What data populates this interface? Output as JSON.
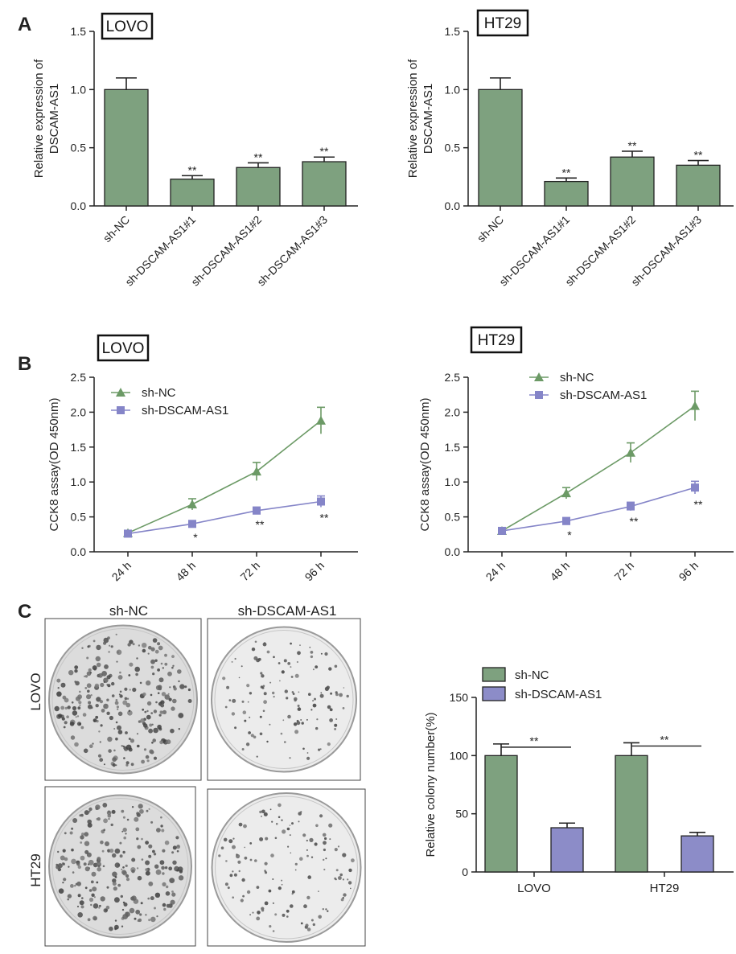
{
  "panels": {
    "A": "A",
    "B": "B",
    "C": "C"
  },
  "colors": {
    "green": "#7ea17f",
    "purple": "#8c8cc8",
    "green_line": "#6c9a66",
    "purple_line": "#8585c8",
    "axis": "#222222"
  },
  "chart_data": [
    {
      "id": "a_lovo",
      "type": "bar",
      "title": "LOVO",
      "ylabel_lines": [
        "Relative expression of",
        "DSCAM-AS1"
      ],
      "ylim": [
        0,
        1.5
      ],
      "yticks": [
        "0.0",
        "0.5",
        "1.0",
        "1.5"
      ],
      "ytick_values": [
        0,
        0.5,
        1.0,
        1.5
      ],
      "categories": [
        "sh-NC",
        "sh-DSCAM-AS1#1",
        "sh-DSCAM-AS1#2",
        "sh-DSCAM-AS1#3"
      ],
      "values": [
        1.0,
        0.23,
        0.33,
        0.38
      ],
      "errors": [
        0.1,
        0.03,
        0.04,
        0.04
      ],
      "sig": [
        "",
        "**",
        "**",
        "**"
      ]
    },
    {
      "id": "a_ht29",
      "type": "bar",
      "title": "HT29",
      "ylabel_lines": [
        "Relative expression of",
        "DSCAM-AS1"
      ],
      "ylim": [
        0,
        1.5
      ],
      "yticks": [
        "0.0",
        "0.5",
        "1.0",
        "1.5"
      ],
      "ytick_values": [
        0,
        0.5,
        1.0,
        1.5
      ],
      "categories": [
        "sh-NC",
        "sh-DSCAM-AS1#1",
        "sh-DSCAM-AS1#2",
        "sh-DSCAM-AS1#3"
      ],
      "values": [
        1.0,
        0.21,
        0.42,
        0.35
      ],
      "errors": [
        0.1,
        0.03,
        0.05,
        0.04
      ],
      "sig": [
        "",
        "**",
        "**",
        "**"
      ]
    },
    {
      "id": "b_lovo",
      "type": "line",
      "title": "LOVO",
      "ylabel": "CCK8 assay(OD 450nm)",
      "ylim": [
        0,
        2.5
      ],
      "yticks": [
        "0.0",
        "0.5",
        "1.0",
        "1.5",
        "2.0",
        "2.5"
      ],
      "ytick_values": [
        0,
        0.5,
        1.0,
        1.5,
        2.0,
        2.5
      ],
      "x": [
        "24 h",
        "48 h",
        "72 h",
        "96 h"
      ],
      "series": [
        {
          "name": "sh-NC",
          "values": [
            0.27,
            0.68,
            1.15,
            1.88
          ],
          "errors": [
            0.02,
            0.08,
            0.13,
            0.19
          ],
          "marker": "triangle"
        },
        {
          "name": "sh-DSCAM-AS1",
          "values": [
            0.26,
            0.4,
            0.59,
            0.72
          ],
          "errors": [
            0.02,
            0.04,
            0.05,
            0.08
          ],
          "marker": "square"
        }
      ],
      "sig": [
        "",
        "*",
        "**",
        "**"
      ]
    },
    {
      "id": "b_ht29",
      "type": "line",
      "title": "HT29",
      "ylabel": "CCK8 assay(OD 450nm)",
      "ylim": [
        0,
        2.5
      ],
      "yticks": [
        "0.0",
        "0.5",
        "1.0",
        "1.5",
        "2.0",
        "2.5"
      ],
      "ytick_values": [
        0,
        0.5,
        1.0,
        1.5,
        2.0,
        2.5
      ],
      "x": [
        "24 h",
        "48 h",
        "72 h",
        "96 h"
      ],
      "series": [
        {
          "name": "sh-NC",
          "values": [
            0.3,
            0.84,
            1.42,
            2.09
          ],
          "errors": [
            0.02,
            0.08,
            0.14,
            0.21
          ],
          "marker": "triangle"
        },
        {
          "name": "sh-DSCAM-AS1",
          "values": [
            0.3,
            0.44,
            0.65,
            0.92
          ],
          "errors": [
            0.02,
            0.05,
            0.06,
            0.09
          ],
          "marker": "square"
        }
      ],
      "sig": [
        "",
        "*",
        "**",
        "**"
      ]
    },
    {
      "id": "c_colony",
      "type": "bar",
      "title": "",
      "ylabel": "Relative colony number(%)",
      "ylim": [
        0,
        150
      ],
      "yticks": [
        "0",
        "50",
        "100",
        "150"
      ],
      "ytick_values": [
        0,
        50,
        100,
        150
      ],
      "categories": [
        "LOVO",
        "HT29"
      ],
      "series": [
        {
          "name": "sh-NC",
          "values": [
            100,
            100
          ],
          "errors": [
            10,
            11
          ]
        },
        {
          "name": "sh-DSCAM-AS1",
          "values": [
            38,
            31
          ],
          "errors": [
            4,
            3
          ]
        }
      ],
      "sig": [
        "**",
        "**"
      ]
    }
  ],
  "colony_images": {
    "col_labels": [
      "sh-NC",
      "sh-DSCAM-AS1"
    ],
    "row_labels": [
      "LOVO",
      "HT29"
    ]
  }
}
